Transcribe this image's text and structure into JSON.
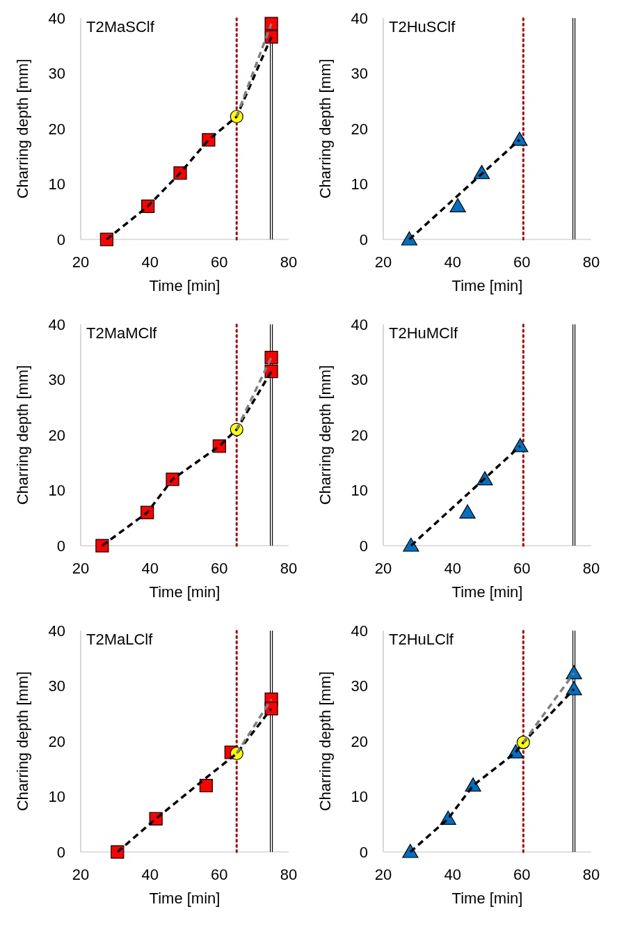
{
  "chart_data": [
    {
      "type": "scatter",
      "title": "T2MaSClf",
      "xlabel": "Time [min]",
      "ylabel": "Charring depth [mm]",
      "xlim": [
        20,
        80
      ],
      "ylim": [
        0,
        40
      ],
      "xticks": [
        20,
        40,
        60,
        80
      ],
      "yticks": [
        0,
        10,
        20,
        30,
        40
      ],
      "grid": false,
      "ref_lines": [
        {
          "axis": "x",
          "value": 65,
          "color": "#c00000",
          "line_style": "dotted"
        },
        {
          "axis": "x",
          "value": 74.7,
          "color": "#000000",
          "line_style": "solid"
        },
        {
          "axis": "x",
          "value": 75.3,
          "color": "#000000",
          "line_style": "solid"
        }
      ],
      "series": [
        {
          "type": "line",
          "color": "#000000",
          "line_style": "dashed",
          "marker": "none",
          "x": [
            27.5,
            39.4,
            48.7,
            56.9,
            65,
            75
          ],
          "values": [
            0,
            6,
            12,
            18,
            22.2,
            36.6
          ]
        },
        {
          "type": "line",
          "color": "#808080",
          "line_style": "dashed",
          "marker": "none",
          "x": [
            65,
            75
          ],
          "values": [
            22.2,
            39
          ]
        },
        {
          "color": "#ff0000",
          "marker": "square",
          "x": [
            27.5,
            39.4,
            48.7,
            56.9,
            75,
            75
          ],
          "values": [
            0,
            6,
            12,
            18,
            39,
            36.6
          ]
        },
        {
          "color": "#ffff00",
          "marker": "circle",
          "x": [
            65
          ],
          "values": [
            22.2
          ]
        }
      ]
    },
    {
      "type": "scatter",
      "title": "T2HuSClf",
      "xlabel": "Time [min]",
      "ylabel": "Charring depth [mm]",
      "xlim": [
        20,
        80
      ],
      "ylim": [
        0,
        40
      ],
      "xticks": [
        20,
        40,
        60,
        80
      ],
      "yticks": [
        0,
        10,
        20,
        30,
        40
      ],
      "grid": false,
      "ref_lines": [
        {
          "axis": "x",
          "value": 60.4,
          "color": "#c00000",
          "line_style": "dotted"
        },
        {
          "axis": "x",
          "value": 74.7,
          "color": "#000000",
          "line_style": "solid"
        },
        {
          "axis": "x",
          "value": 75.3,
          "color": "#000000",
          "line_style": "solid"
        }
      ],
      "series": [
        {
          "type": "line",
          "color": "#000000",
          "line_style": "dashed",
          "marker": "none",
          "x": [
            27.5,
            59.3
          ],
          "values": [
            0,
            18
          ]
        },
        {
          "color": "#0070c0",
          "marker": "triangle",
          "x": [
            27.5,
            41.5,
            48.4,
            59.3
          ],
          "values": [
            0,
            6,
            12,
            18
          ]
        }
      ]
    },
    {
      "type": "scatter",
      "title": "T2MaMClf",
      "xlabel": "Time [min]",
      "ylabel": "Charring depth [mm]",
      "xlim": [
        20,
        80
      ],
      "ylim": [
        0,
        40
      ],
      "xticks": [
        20,
        40,
        60,
        80
      ],
      "yticks": [
        0,
        10,
        20,
        30,
        40
      ],
      "grid": false,
      "ref_lines": [
        {
          "axis": "x",
          "value": 65,
          "color": "#c00000",
          "line_style": "dotted"
        },
        {
          "axis": "x",
          "value": 74.7,
          "color": "#000000",
          "line_style": "solid"
        },
        {
          "axis": "x",
          "value": 75.3,
          "color": "#000000",
          "line_style": "solid"
        }
      ],
      "series": [
        {
          "type": "line",
          "color": "#000000",
          "line_style": "dashed",
          "marker": "none",
          "x": [
            26.2,
            39.2,
            46.5,
            60,
            65,
            75
          ],
          "values": [
            0,
            6,
            12,
            18,
            21,
            31.5
          ]
        },
        {
          "type": "line",
          "color": "#808080",
          "line_style": "dashed",
          "marker": "none",
          "x": [
            65,
            75
          ],
          "values": [
            21,
            34
          ]
        },
        {
          "color": "#ff0000",
          "marker": "square",
          "x": [
            26.2,
            39.2,
            46.5,
            60,
            75,
            75
          ],
          "values": [
            0,
            6,
            12,
            18,
            34,
            31.5
          ]
        },
        {
          "color": "#ffff00",
          "marker": "circle",
          "x": [
            65
          ],
          "values": [
            21
          ]
        }
      ]
    },
    {
      "type": "scatter",
      "title": "T2HuMClf",
      "xlabel": "Time [min]",
      "ylabel": "Charring depth [mm]",
      "xlim": [
        20,
        80
      ],
      "ylim": [
        0,
        40
      ],
      "xticks": [
        20,
        40,
        60,
        80
      ],
      "yticks": [
        0,
        10,
        20,
        30,
        40
      ],
      "grid": false,
      "ref_lines": [
        {
          "axis": "x",
          "value": 60.4,
          "color": "#c00000",
          "line_style": "dotted"
        },
        {
          "axis": "x",
          "value": 74.7,
          "color": "#000000",
          "line_style": "solid"
        },
        {
          "axis": "x",
          "value": 75.3,
          "color": "#000000",
          "line_style": "solid"
        }
      ],
      "series": [
        {
          "type": "line",
          "color": "#000000",
          "line_style": "dashed",
          "marker": "none",
          "x": [
            28,
            59.5
          ],
          "values": [
            0,
            18
          ]
        },
        {
          "color": "#0070c0",
          "marker": "triangle",
          "x": [
            28,
            44.3,
            49.3,
            59.5
          ],
          "values": [
            0,
            6,
            12,
            18
          ]
        }
      ]
    },
    {
      "type": "scatter",
      "title": "T2MaLClf",
      "xlabel": "Time [min]",
      "ylabel": "Charring depth [mm]",
      "xlim": [
        20,
        80
      ],
      "ylim": [
        0,
        40
      ],
      "xticks": [
        20,
        40,
        60,
        80
      ],
      "yticks": [
        0,
        10,
        20,
        30,
        40
      ],
      "grid": false,
      "ref_lines": [
        {
          "axis": "x",
          "value": 65,
          "color": "#c00000",
          "line_style": "dotted"
        },
        {
          "axis": "x",
          "value": 74.7,
          "color": "#000000",
          "line_style": "solid"
        },
        {
          "axis": "x",
          "value": 75.3,
          "color": "#000000",
          "line_style": "solid"
        }
      ],
      "series": [
        {
          "type": "line",
          "color": "#000000",
          "line_style": "dashed",
          "marker": "none",
          "x": [
            30.6,
            41.7,
            56.2,
            65,
            75
          ],
          "values": [
            0,
            6,
            13.4,
            17.8,
            25.9
          ]
        },
        {
          "type": "line",
          "color": "#808080",
          "line_style": "dashed",
          "marker": "none",
          "x": [
            65,
            75
          ],
          "values": [
            17.8,
            27.6
          ]
        },
        {
          "color": "#ff0000",
          "marker": "square",
          "x": [
            30.6,
            41.7,
            56.2,
            63.4,
            75,
            75
          ],
          "values": [
            0,
            6,
            12,
            18,
            27.6,
            25.9
          ]
        },
        {
          "color": "#ffff00",
          "marker": "circle",
          "x": [
            65
          ],
          "values": [
            17.8
          ]
        }
      ]
    },
    {
      "type": "scatter",
      "title": "T2HuLClf",
      "xlabel": "Time [min]",
      "ylabel": "Charring depth [mm]",
      "xlim": [
        20,
        80
      ],
      "ylim": [
        0,
        40
      ],
      "xticks": [
        20,
        40,
        60,
        80
      ],
      "yticks": [
        0,
        10,
        20,
        30,
        40
      ],
      "grid": false,
      "ref_lines": [
        {
          "axis": "x",
          "value": 60.4,
          "color": "#c00000",
          "line_style": "dotted"
        },
        {
          "axis": "x",
          "value": 74.7,
          "color": "#000000",
          "line_style": "solid"
        },
        {
          "axis": "x",
          "value": 75.3,
          "color": "#000000",
          "line_style": "solid"
        }
      ],
      "series": [
        {
          "type": "line",
          "color": "#000000",
          "line_style": "dashed",
          "marker": "none",
          "x": [
            27.8,
            38.7,
            45.9,
            58.2,
            60.4,
            75
          ],
          "values": [
            0,
            6,
            12,
            18,
            19.8,
            29.4
          ]
        },
        {
          "type": "line",
          "color": "#808080",
          "line_style": "dashed",
          "marker": "none",
          "x": [
            60.4,
            75
          ],
          "values": [
            19.8,
            32.3
          ]
        },
        {
          "color": "#0070c0",
          "marker": "triangle",
          "x": [
            27.8,
            38.7,
            45.9,
            58.2,
            75,
            75
          ],
          "values": [
            0,
            6,
            12,
            18,
            32.3,
            29.4
          ]
        },
        {
          "color": "#ffff00",
          "marker": "circle",
          "x": [
            60.4
          ],
          "values": [
            19.8
          ]
        }
      ]
    }
  ]
}
